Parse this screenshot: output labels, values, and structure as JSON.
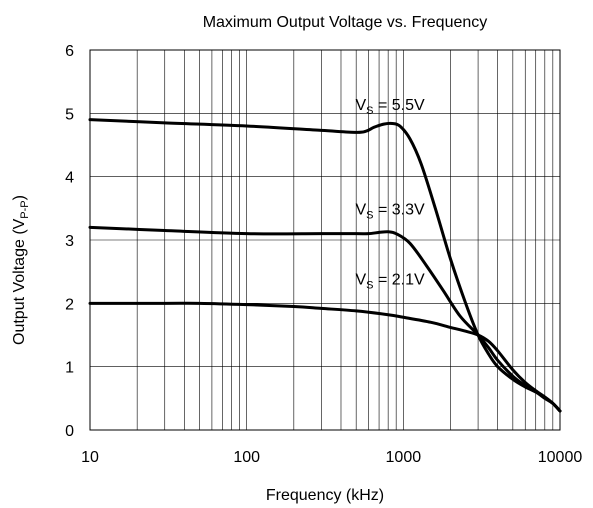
{
  "chart_data": {
    "type": "line",
    "title": "Maximum Output Voltage vs. Frequency",
    "xlabel": "Frequency (kHz)",
    "ylabel": {
      "main": "Output Voltage (V",
      "sub": "P-P",
      "close": ")"
    },
    "x_scale": "log",
    "xlim": [
      10,
      10000
    ],
    "ylim": [
      0,
      6
    ],
    "grid": true,
    "x_ticks": [
      10,
      100,
      1000,
      10000
    ],
    "x_tick_labels": [
      "10",
      "100",
      "1000",
      "10000"
    ],
    "y_ticks": [
      0,
      1,
      2,
      3,
      4,
      5,
      6
    ],
    "y_tick_labels": [
      "0",
      "1",
      "2",
      "3",
      "4",
      "5",
      "6"
    ],
    "series": [
      {
        "label_main": "V",
        "label_sub": "S",
        "label_value": " = 5.5V",
        "label_anchor": [
          90,
          5.05
        ],
        "points": [
          [
            10,
            4.9
          ],
          [
            30,
            4.85
          ],
          [
            100,
            4.8
          ],
          [
            300,
            4.73
          ],
          [
            500,
            4.7
          ],
          [
            580,
            4.72
          ],
          [
            650,
            4.78
          ],
          [
            750,
            4.83
          ],
          [
            850,
            4.84
          ],
          [
            950,
            4.8
          ],
          [
            1100,
            4.6
          ],
          [
            1300,
            4.2
          ],
          [
            1600,
            3.5
          ],
          [
            2000,
            2.7
          ],
          [
            2500,
            2.0
          ],
          [
            3000,
            1.5
          ],
          [
            3500,
            1.2
          ],
          [
            4000,
            1.0
          ],
          [
            5000,
            0.8
          ],
          [
            6000,
            0.68
          ],
          [
            7000,
            0.6
          ],
          [
            8000,
            0.5
          ],
          [
            9000,
            0.42
          ],
          [
            10000,
            0.3
          ]
        ]
      },
      {
        "label_main": "V",
        "label_sub": "S",
        "label_value": " = 3.3V",
        "label_anchor": [
          90,
          3.4
        ],
        "points": [
          [
            10,
            3.2
          ],
          [
            30,
            3.15
          ],
          [
            100,
            3.1
          ],
          [
            300,
            3.1
          ],
          [
            500,
            3.1
          ],
          [
            600,
            3.1
          ],
          [
            700,
            3.12
          ],
          [
            800,
            3.13
          ],
          [
            900,
            3.1
          ],
          [
            1100,
            2.95
          ],
          [
            1400,
            2.6
          ],
          [
            1800,
            2.2
          ],
          [
            2300,
            1.8
          ],
          [
            3000,
            1.5
          ],
          [
            3500,
            1.3
          ],
          [
            4000,
            1.1
          ],
          [
            5000,
            0.85
          ],
          [
            6000,
            0.7
          ],
          [
            7000,
            0.6
          ],
          [
            8000,
            0.52
          ],
          [
            9000,
            0.42
          ],
          [
            10000,
            0.3
          ]
        ]
      },
      {
        "label_main": "V",
        "label_sub": "S",
        "label_value": " = 2.1V",
        "label_anchor": [
          90,
          2.3
        ],
        "points": [
          [
            10,
            2.0
          ],
          [
            30,
            2.0
          ],
          [
            50,
            2.0
          ],
          [
            100,
            1.98
          ],
          [
            200,
            1.95
          ],
          [
            300,
            1.92
          ],
          [
            500,
            1.88
          ],
          [
            800,
            1.82
          ],
          [
            1000,
            1.78
          ],
          [
            1500,
            1.7
          ],
          [
            2000,
            1.62
          ],
          [
            2500,
            1.56
          ],
          [
            3000,
            1.5
          ],
          [
            3500,
            1.4
          ],
          [
            4000,
            1.25
          ],
          [
            5000,
            0.95
          ],
          [
            6000,
            0.75
          ],
          [
            7000,
            0.62
          ],
          [
            8000,
            0.52
          ],
          [
            9000,
            0.42
          ],
          [
            10000,
            0.3
          ]
        ]
      }
    ]
  }
}
